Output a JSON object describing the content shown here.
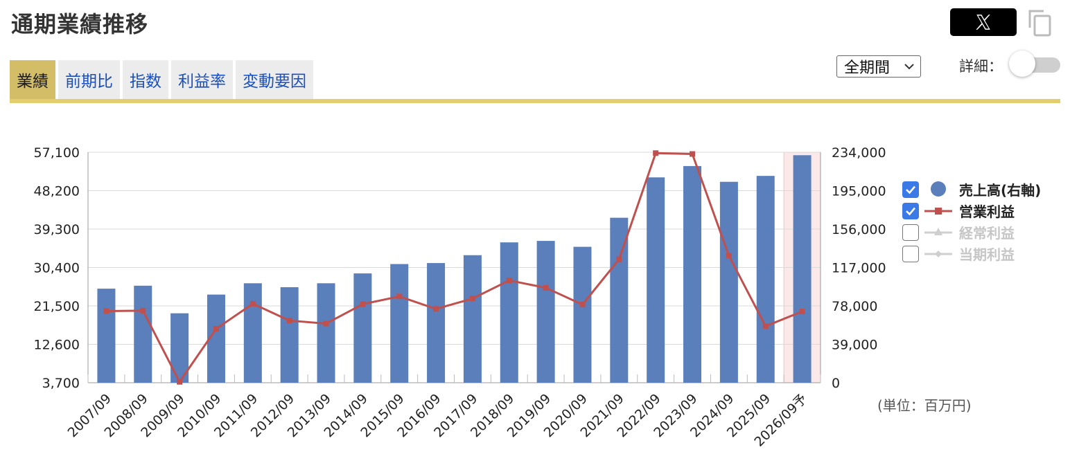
{
  "header": {
    "title": "通期業績推移",
    "x_share_label": "𝕏"
  },
  "tabs": [
    {
      "label": "業績",
      "active": true
    },
    {
      "label": "前期比",
      "active": false
    },
    {
      "label": "指数",
      "active": false
    },
    {
      "label": "利益率",
      "active": false
    },
    {
      "label": "変動要因",
      "active": false
    }
  ],
  "controls": {
    "period_select": "全期間",
    "detail_label": "詳細：",
    "detail_toggle_on": false
  },
  "unit_label": "(単位：百万円)",
  "legend": [
    {
      "label": "売上高(右軸)",
      "checked": true,
      "icon": "circle-icon"
    },
    {
      "label": "営業利益",
      "checked": true,
      "icon": "line-square-icon"
    },
    {
      "label": "経常利益",
      "checked": false,
      "icon": "line-triangle-icon"
    },
    {
      "label": "当期利益",
      "checked": false,
      "icon": "line-diamond-icon"
    }
  ],
  "colors": {
    "sales_bar": "#5a7fbb",
    "op_profit": "#c0504d",
    "accent": "#e3cd6c",
    "forecast_band": "#fbe9ea"
  },
  "chart_data": {
    "type": "bar",
    "categories": [
      "2007/09",
      "2008/09",
      "2009/09",
      "2010/09",
      "2011/09",
      "2012/09",
      "2013/09",
      "2014/09",
      "2015/09",
      "2016/09",
      "2017/09",
      "2018/09",
      "2019/09",
      "2020/09",
      "2021/09",
      "2022/09",
      "2023/09",
      "2024/09",
      "2025/09",
      "2026/09予"
    ],
    "forecast_index": 19,
    "y_left": {
      "ticks": [
        "3,700",
        "12,600",
        "21,500",
        "30,400",
        "39,300",
        "48,200",
        "57,100"
      ],
      "min": 3700,
      "max": 57100
    },
    "y_right": {
      "ticks": [
        "0",
        "39,000",
        "78,000",
        "117,000",
        "156,000",
        "195,000",
        "234,000"
      ],
      "min": 0,
      "max": 234000
    },
    "grid": true,
    "legend_position": "right",
    "series": [
      {
        "name": "売上高(右軸)",
        "type": "bar",
        "axis": "right",
        "values": [
          95500,
          98500,
          70500,
          89500,
          101000,
          97000,
          101000,
          111000,
          120500,
          121500,
          129500,
          142500,
          144000,
          138000,
          167500,
          208500,
          220000,
          204000,
          210000,
          231000
        ]
      },
      {
        "name": "営業利益",
        "type": "line",
        "axis": "left",
        "values": [
          20300,
          20400,
          3900,
          16200,
          22000,
          18100,
          17400,
          21900,
          23700,
          20800,
          23200,
          27400,
          25700,
          21800,
          32300,
          56900,
          56700,
          33100,
          16800,
          20200
        ]
      }
    ]
  }
}
